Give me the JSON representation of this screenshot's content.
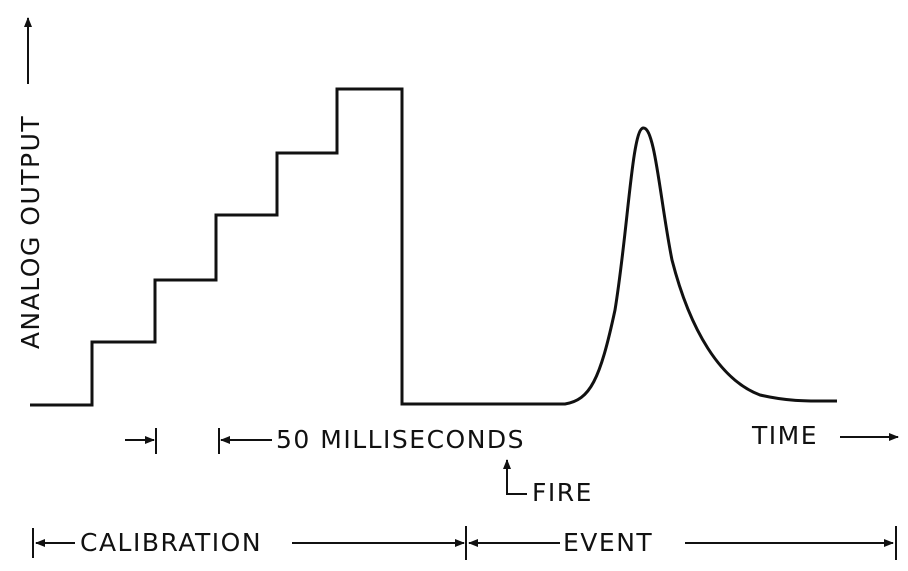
{
  "y_axis_label": "ANALOG OUTPUT",
  "x_axis_label": "TIME",
  "interval_label": "50 MILLISECONDS",
  "fire_label": "FIRE",
  "phases": [
    "CALIBRATION",
    "EVENT"
  ]
}
